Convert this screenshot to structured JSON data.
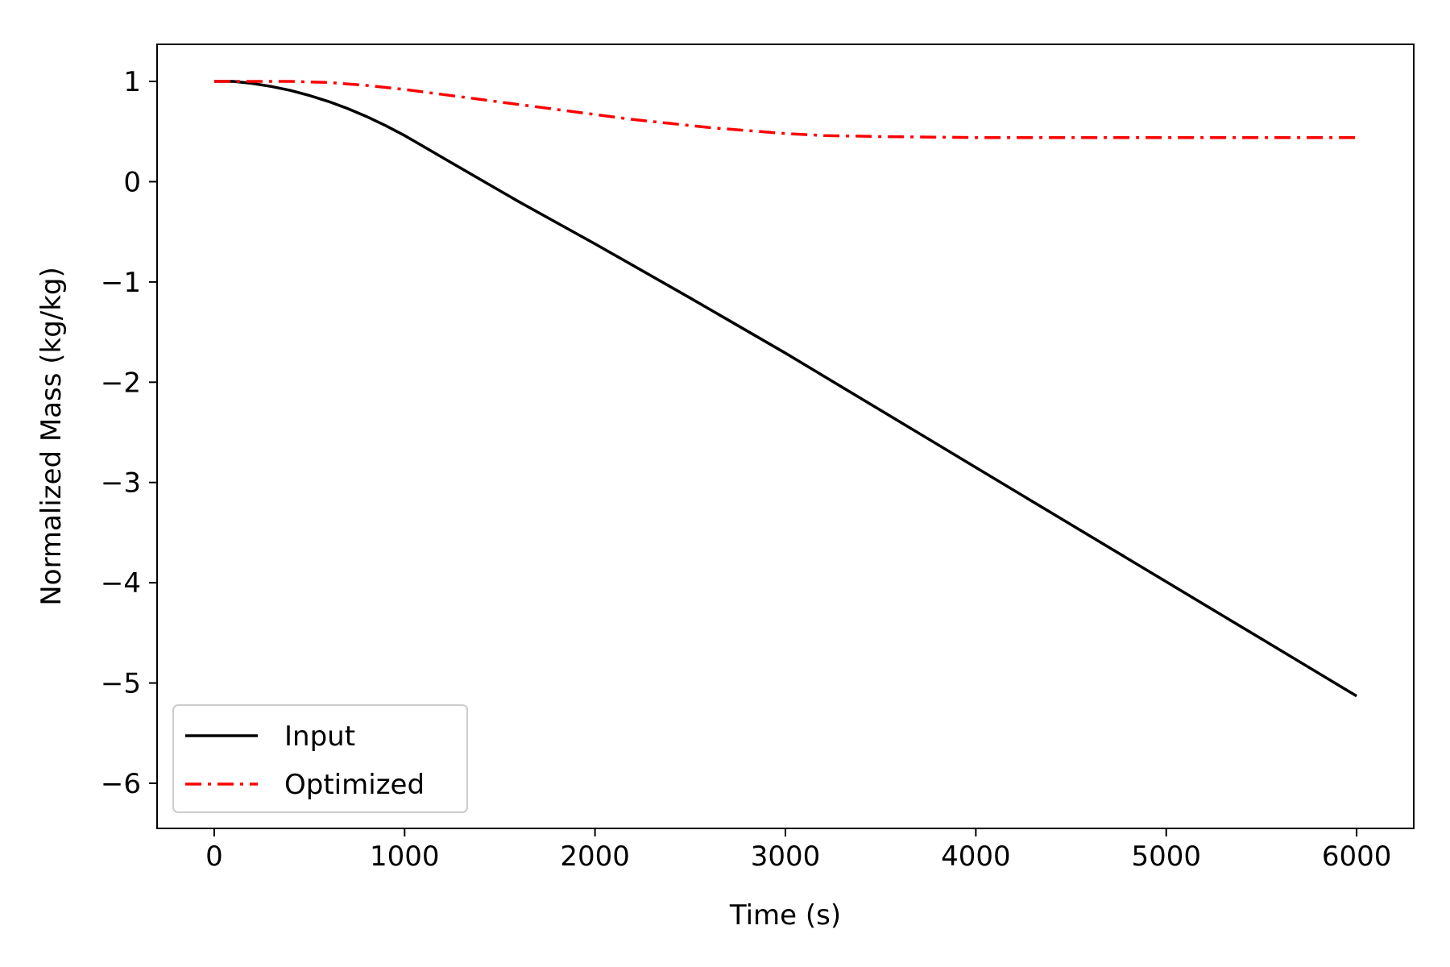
{
  "chart_data": {
    "type": "line",
    "title": "",
    "xlabel": "Time (s)",
    "ylabel": "Normalized Mass (kg/kg)",
    "xlim": [
      -300,
      6300
    ],
    "ylim": [
      -6.45,
      1.37
    ],
    "xticks": [
      0,
      1000,
      2000,
      3000,
      4000,
      5000,
      6000
    ],
    "xtick_labels": [
      "0",
      "1000",
      "2000",
      "3000",
      "4000",
      "5000",
      "6000"
    ],
    "yticks": [
      1,
      0,
      -1,
      -2,
      -3,
      -4,
      -5,
      -6
    ],
    "ytick_labels": [
      "1",
      "0",
      "−1",
      "−2",
      "−3",
      "−4",
      "−5",
      "−6"
    ],
    "grid": false,
    "legend": {
      "position": "lower-left"
    },
    "series": [
      {
        "name": "Input",
        "color": "#000000",
        "dash": "solid",
        "x": [
          0,
          100,
          200,
          300,
          400,
          500,
          600,
          700,
          800,
          900,
          1000,
          1100,
          1200,
          1400,
          1600,
          1800,
          2000,
          2500,
          3000,
          3500,
          4000,
          4500,
          5000,
          5500,
          6000
        ],
        "y": [
          1.0,
          1.0,
          0.98,
          0.95,
          0.91,
          0.86,
          0.8,
          0.73,
          0.65,
          0.56,
          0.46,
          0.35,
          0.24,
          0.02,
          -0.2,
          -0.41,
          -0.62,
          -1.16,
          -1.71,
          -2.28,
          -2.85,
          -3.42,
          -3.99,
          -4.56,
          -5.13
        ]
      },
      {
        "name": "Optimized",
        "color": "#ff0000",
        "dash": "dash-dot",
        "x": [
          0,
          200,
          400,
          600,
          800,
          1000,
          1200,
          1400,
          1600,
          1800,
          2000,
          2200,
          2400,
          2600,
          2800,
          3000,
          3200,
          3500,
          4000,
          4500,
          5000,
          5500,
          6000
        ],
        "y": [
          1.0,
          1.0,
          1.0,
          0.99,
          0.96,
          0.92,
          0.87,
          0.82,
          0.77,
          0.72,
          0.67,
          0.62,
          0.58,
          0.54,
          0.51,
          0.48,
          0.46,
          0.45,
          0.44,
          0.44,
          0.44,
          0.44,
          0.44
        ]
      }
    ]
  }
}
